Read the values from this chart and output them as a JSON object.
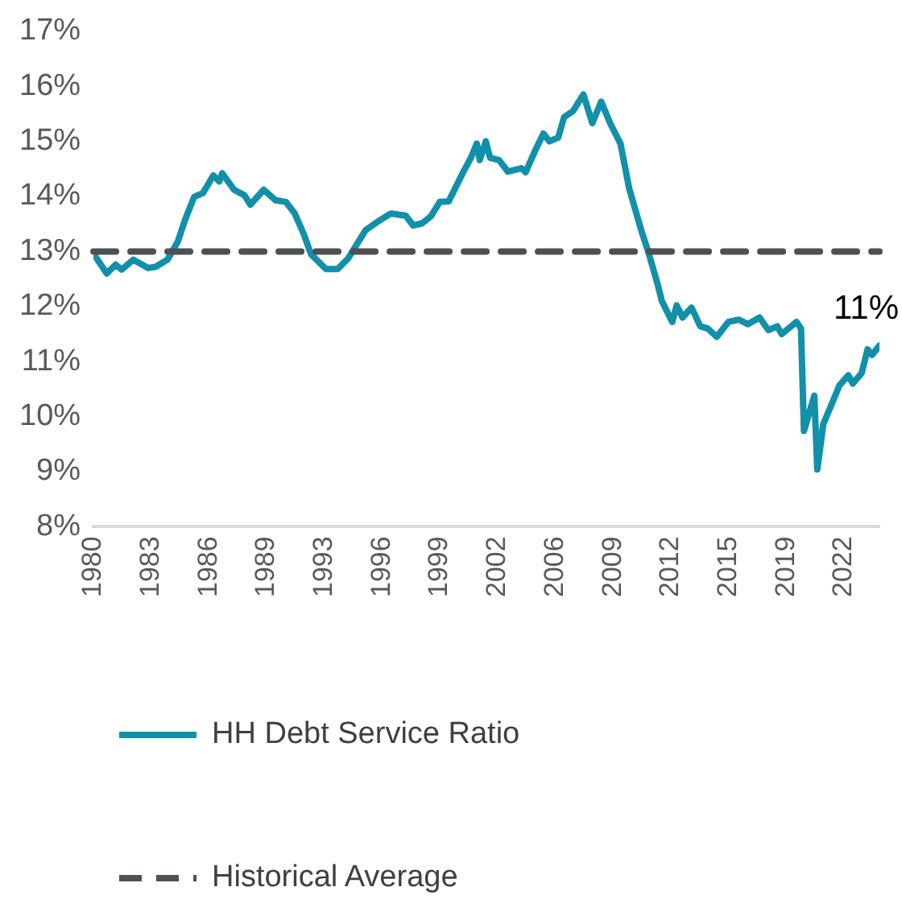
{
  "chart_data": {
    "type": "line",
    "x": [
      "1980-01",
      "1980-10",
      "1981-04",
      "1981-08",
      "1982-04",
      "1983-02",
      "1983-07",
      "1984-03",
      "1984-10",
      "1985-03",
      "1985-09",
      "1986-03",
      "1986-10",
      "1987-02",
      "1987-04",
      "1987-12",
      "1988-07",
      "1988-11",
      "1989-08",
      "1990-04",
      "1990-11",
      "1991-05",
      "1991-11",
      "1992-04",
      "1993-02",
      "1993-10",
      "1994-05",
      "1995-05",
      "1996-01",
      "1996-10",
      "1997-08",
      "1998-01",
      "1998-07",
      "1999-01",
      "1999-07",
      "2000-01",
      "2000-10",
      "2001-04",
      "2001-08",
      "2001-10",
      "2002-02",
      "2002-05",
      "2002-11",
      "2003-05",
      "2004-02",
      "2004-05",
      "2004-11",
      "2005-05",
      "2005-09",
      "2006-03",
      "2006-07",
      "2007-01",
      "2007-08",
      "2008-02",
      "2008-08",
      "2009-02",
      "2009-09",
      "2010-03",
      "2010-11",
      "2011-04",
      "2011-10",
      "2012-01",
      "2012-08",
      "2012-11",
      "2013-03",
      "2013-09",
      "2014-03",
      "2014-08",
      "2015-02",
      "2015-10",
      "2016-05",
      "2016-11",
      "2017-07",
      "2018-01",
      "2018-07",
      "2018-10",
      "2019-08",
      "2019-11",
      "2020-01",
      "2020-08",
      "2020-10",
      "2021-02",
      "2022-01",
      "2022-07",
      "2022-10",
      "2023-04",
      "2023-08",
      "2023-11",
      "2024-04"
    ],
    "series": [
      {
        "name": "HH Debt Service Ratio",
        "color": "#1290aa",
        "values": [
          12.96,
          12.6,
          12.76,
          12.67,
          12.85,
          12.7,
          12.72,
          12.85,
          13.18,
          13.58,
          13.99,
          14.06,
          14.38,
          14.27,
          14.42,
          14.12,
          14.02,
          13.85,
          14.12,
          13.93,
          13.9,
          13.69,
          13.32,
          12.95,
          12.68,
          12.68,
          12.87,
          13.39,
          13.54,
          13.69,
          13.65,
          13.47,
          13.51,
          13.64,
          13.9,
          13.91,
          14.4,
          14.7,
          14.96,
          14.66,
          15.0,
          14.7,
          14.66,
          14.45,
          14.51,
          14.44,
          14.81,
          15.14,
          15.0,
          15.07,
          15.44,
          15.55,
          15.85,
          15.33,
          15.72,
          15.33,
          14.96,
          14.14,
          13.39,
          12.98,
          12.42,
          12.1,
          11.72,
          12.02,
          11.8,
          11.98,
          11.64,
          11.6,
          11.45,
          11.72,
          11.76,
          11.68,
          11.8,
          11.57,
          11.64,
          11.5,
          11.72,
          11.6,
          9.74,
          10.38,
          9.04,
          9.86,
          10.57,
          10.75,
          10.6,
          10.79,
          11.22,
          11.12,
          11.29
        ]
      }
    ],
    "xlim": [
      "1980-01",
      "2024-04"
    ],
    "xticks": [
      {
        "value": "1980-01",
        "label": "1980"
      },
      {
        "value": "1983-04",
        "label": "1983"
      },
      {
        "value": "1986-07",
        "label": "1986"
      },
      {
        "value": "1989-10",
        "label": "1989"
      },
      {
        "value": "1993-01",
        "label": "1993"
      },
      {
        "value": "1996-04",
        "label": "1996"
      },
      {
        "value": "1999-07",
        "label": "1999"
      },
      {
        "value": "2002-10",
        "label": "2002"
      },
      {
        "value": "2006-01",
        "label": "2006"
      },
      {
        "value": "2009-04",
        "label": "2009"
      },
      {
        "value": "2012-07",
        "label": "2012"
      },
      {
        "value": "2015-10",
        "label": "2015"
      },
      {
        "value": "2019-01",
        "label": "2019"
      },
      {
        "value": "2022-04",
        "label": "2022"
      }
    ],
    "ylim": [
      8,
      17
    ],
    "yticks": [
      {
        "value": 8,
        "label": "8%"
      },
      {
        "value": 9,
        "label": "9%"
      },
      {
        "value": 10,
        "label": "10%"
      },
      {
        "value": 11,
        "label": "11%"
      },
      {
        "value": 12,
        "label": "12%"
      },
      {
        "value": 13,
        "label": "13%"
      },
      {
        "value": 14,
        "label": "14%"
      },
      {
        "value": 15,
        "label": "15%"
      },
      {
        "value": 16,
        "label": "16%"
      },
      {
        "value": 17,
        "label": "17%"
      }
    ],
    "ref_lines": [
      {
        "axis": "y",
        "value": 13,
        "label": "Historical Average",
        "color": "#4d5152",
        "line_style": "dashed"
      }
    ],
    "annotations": [
      {
        "text": "11%",
        "x": "2024-04",
        "y": 11.29
      }
    ],
    "grid": false,
    "legend": "bottom",
    "marker": "none",
    "line_style": "solid"
  }
}
